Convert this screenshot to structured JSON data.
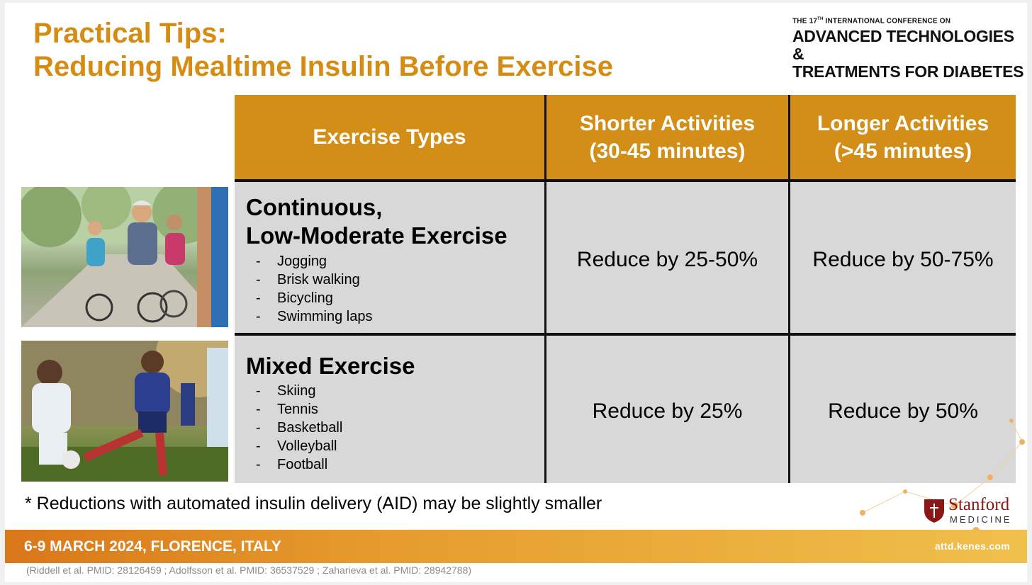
{
  "slide": {
    "title_line1": "Practical Tips:",
    "title_line2": "Reducing Mealtime Insulin Before Exercise",
    "conference_prefix": "THE 17",
    "conference_sup": "TH",
    "conference_suffix": " INTERNATIONAL CONFERENCE ON",
    "conference_name_line1": "ADVANCED TECHNOLOGIES &",
    "conference_name_line2": "TREATMENTS FOR DIABETES"
  },
  "table": {
    "headers": [
      {
        "line1": "Exercise Types",
        "line2": ""
      },
      {
        "line1": "Shorter Activities",
        "line2": "(30-45 minutes)"
      },
      {
        "line1": "Longer Activities",
        "line2": "(>45 minutes)"
      }
    ],
    "rows": [
      {
        "title_line1": "Continuous,",
        "title_line2": "Low-Moderate Exercise",
        "items": [
          "Jogging",
          "Brisk walking",
          "Bicycling",
          "Swimming laps"
        ],
        "shorter": "Reduce by 25-50%",
        "longer": "Reduce by 50-75%"
      },
      {
        "title_line1": "Mixed Exercise",
        "title_line2": "",
        "items": [
          "Skiing",
          "Tennis",
          "Basketball",
          "Volleyball",
          "Football"
        ],
        "shorter": "Reduce by 25%",
        "longer": "Reduce by 50%"
      }
    ],
    "dash": "-"
  },
  "footnote": "* Reductions with automated insulin delivery (AID) may be slightly smaller",
  "footer": {
    "date_location": "6-9 MARCH 2024, FLORENCE, ITALY",
    "website": "attd.kenes.com",
    "references": "(Riddell et al. PMID: 28126459 ; Adolfsson et al. PMID: 36537529 ; Zaharieva et al. PMID: 28942788)"
  },
  "logo": {
    "name": "Stanford",
    "subtitle": "MEDICINE"
  },
  "colors": {
    "accent": "#d68c12",
    "header_bg": "#d28e16",
    "cell_bg": "#d8d8d8",
    "stanford_red": "#8c1515"
  }
}
